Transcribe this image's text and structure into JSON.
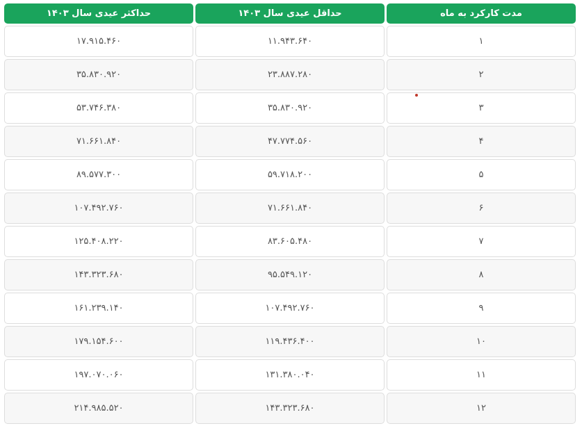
{
  "table": {
    "headers": [
      "مدت کارکرد به ماه",
      "حداقل عیدی سال ۱۴۰۳",
      "حداکثر عیدی سال ۱۴۰۳"
    ],
    "rows": [
      [
        "۱",
        "۱۱.۹۴۳.۶۴۰",
        "۱۷.۹۱۵.۴۶۰"
      ],
      [
        "۲",
        "۲۳.۸۸۷.۲۸۰",
        "۳۵.۸۳۰.۹۲۰"
      ],
      [
        "۳",
        "۳۵.۸۳۰.۹۲۰",
        "۵۳.۷۴۶.۳۸۰"
      ],
      [
        "۴",
        "۴۷.۷۷۴.۵۶۰",
        "۷۱.۶۶۱.۸۴۰"
      ],
      [
        "۵",
        "۵۹.۷۱۸.۲۰۰",
        "۸۹.۵۷۷.۳۰۰"
      ],
      [
        "۶",
        "۷۱.۶۶۱.۸۴۰",
        "۱۰۷.۴۹۲.۷۶۰"
      ],
      [
        "۷",
        "۸۳.۶۰۵.۴۸۰",
        "۱۲۵.۴۰۸.۲۲۰"
      ],
      [
        "۸",
        "۹۵.۵۴۹.۱۲۰",
        "۱۴۳.۳۲۳.۶۸۰"
      ],
      [
        "۹",
        "۱۰۷.۴۹۲.۷۶۰",
        "۱۶۱.۲۳۹.۱۴۰"
      ],
      [
        "۱۰",
        "۱۱۹.۴۳۶.۴۰۰",
        "۱۷۹.۱۵۴.۶۰۰"
      ],
      [
        "۱۱",
        "۱۳۱.۳۸۰.۰۴۰",
        "۱۹۷.۰۷۰.۰۶۰"
      ],
      [
        "۱۲",
        "۱۴۳.۳۲۳.۶۸۰",
        "۲۱۴.۹۸۵.۵۲۰"
      ]
    ]
  },
  "colors": {
    "header_bg": "#1aa45c",
    "header_text": "#ffffff",
    "cell_border": "#dddddd",
    "row_alt_bg": "#f7f7f7",
    "cell_text": "#555555"
  }
}
